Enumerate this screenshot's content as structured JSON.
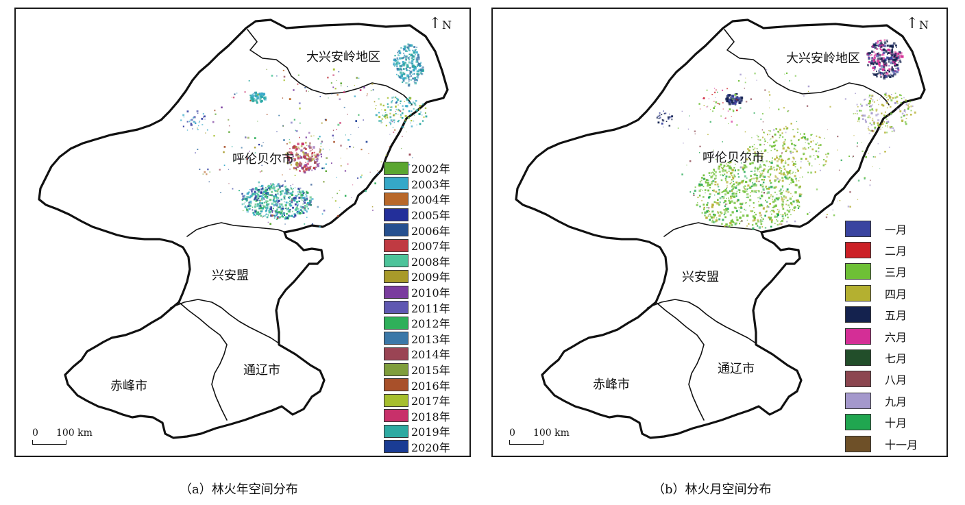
{
  "panels": [
    {
      "caption": "（a）林火年空间分布",
      "north": "N",
      "scale": {
        "zero": "0",
        "label": "100 km"
      },
      "regions": [
        "大兴安岭地区",
        "呼伦贝尔市",
        "兴安盟",
        "通辽市",
        "赤峰市"
      ],
      "legend": [
        {
          "label": "2002年",
          "color": "#5aa630"
        },
        {
          "label": "2003年",
          "color": "#35a8c8"
        },
        {
          "label": "2004年",
          "color": "#b8682a"
        },
        {
          "label": "2005年",
          "color": "#232f9a"
        },
        {
          "label": "2006年",
          "color": "#26508f"
        },
        {
          "label": "2007年",
          "color": "#c03a42"
        },
        {
          "label": "2008年",
          "color": "#4dc49a"
        },
        {
          "label": "2009年",
          "color": "#a89a2a"
        },
        {
          "label": "2010年",
          "color": "#7a3c9e"
        },
        {
          "label": "2011年",
          "color": "#5f58b2"
        },
        {
          "label": "2012年",
          "color": "#2fb05a"
        },
        {
          "label": "2013年",
          "color": "#3b78a8"
        },
        {
          "label": "2014年",
          "color": "#9a4454"
        },
        {
          "label": "2015年",
          "color": "#7f9e3c"
        },
        {
          "label": "2016年",
          "color": "#a8502a"
        },
        {
          "label": "2017年",
          "color": "#a6bf2e"
        },
        {
          "label": "2018年",
          "color": "#c8306a"
        },
        {
          "label": "2019年",
          "color": "#2eaaa2"
        },
        {
          "label": "2020年",
          "color": "#1a3c94"
        }
      ]
    },
    {
      "caption": "（b）林火月空间分布",
      "north": "N",
      "scale": {
        "zero": "0",
        "label": "100 km"
      },
      "regions": [
        "大兴安岭地区",
        "呼伦贝尔市",
        "兴安盟",
        "通辽市",
        "赤峰市"
      ],
      "legend": [
        {
          "label": "一月",
          "color": "#3a44a0"
        },
        {
          "label": "二月",
          "color": "#cc2026"
        },
        {
          "label": "三月",
          "color": "#6ec036"
        },
        {
          "label": "四月",
          "color": "#b4b030"
        },
        {
          "label": "五月",
          "color": "#14224e"
        },
        {
          "label": "六月",
          "color": "#d42e96"
        },
        {
          "label": "七月",
          "color": "#224e2a"
        },
        {
          "label": "八月",
          "color": "#8c4650"
        },
        {
          "label": "九月",
          "color": "#a498cc"
        },
        {
          "label": "十月",
          "color": "#20a650"
        },
        {
          "label": "十一月",
          "color": "#6e5028"
        }
      ]
    }
  ]
}
